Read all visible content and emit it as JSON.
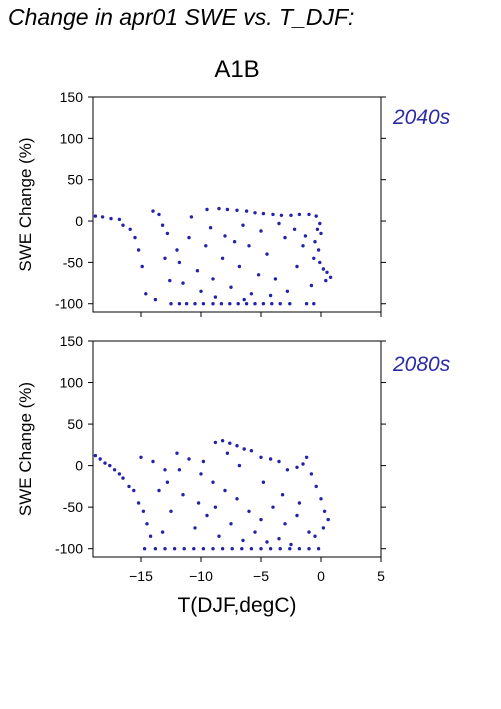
{
  "figure": {
    "title": "Change in apr01 SWE vs. T_DJF:",
    "scenario": "A1B",
    "xlabel": "T(DJF,degC)"
  },
  "colors": {
    "points": "#2222aa",
    "period_label": "#2b2baa"
  },
  "chart_data": [
    {
      "type": "scatter",
      "period_label": "2040s",
      "xlabel": "T(DJF,degC)",
      "ylabel": "SWE Change (%)",
      "xlim": [
        -19,
        5
      ],
      "ylim": [
        -110,
        150
      ],
      "xticks": [
        -15,
        -10,
        -5,
        0,
        5
      ],
      "yticks": [
        -100,
        -50,
        0,
        50,
        100,
        150
      ],
      "grid": false,
      "legend": "none",
      "series": [
        {
          "points": [
            [
              -18.8,
              6
            ],
            [
              -18.2,
              5
            ],
            [
              -17.5,
              3
            ],
            [
              -16.8,
              2
            ],
            [
              -16.5,
              -5
            ],
            [
              -15.9,
              -10
            ],
            [
              -15.5,
              -20
            ],
            [
              -15.2,
              -35
            ],
            [
              -14.9,
              -55
            ],
            [
              -14.6,
              -88
            ],
            [
              -13.8,
              -95
            ],
            [
              -14.0,
              12
            ],
            [
              -13.5,
              8
            ],
            [
              -13.0,
              -45
            ],
            [
              -12.6,
              -72
            ],
            [
              -12.5,
              -100
            ],
            [
              -11.8,
              -100
            ],
            [
              -11.2,
              -100
            ],
            [
              -10.5,
              -100
            ],
            [
              -9.8,
              -100
            ],
            [
              -9.0,
              -100
            ],
            [
              -8.3,
              -100
            ],
            [
              -7.6,
              -100
            ],
            [
              -6.9,
              -100
            ],
            [
              -6.2,
              -100
            ],
            [
              -5.5,
              -100
            ],
            [
              -4.8,
              -100
            ],
            [
              -4.1,
              -100
            ],
            [
              -3.4,
              -100
            ],
            [
              -2.6,
              -100
            ],
            [
              -0.6,
              -100
            ],
            [
              -1.2,
              -100
            ],
            [
              -9.5,
              14
            ],
            [
              -8.5,
              15
            ],
            [
              -7.8,
              14
            ],
            [
              -7.0,
              13
            ],
            [
              -6.2,
              12
            ],
            [
              -5.5,
              10
            ],
            [
              -4.8,
              9
            ],
            [
              -4.0,
              8
            ],
            [
              -3.3,
              7
            ],
            [
              -2.5,
              7
            ],
            [
              -1.8,
              8
            ],
            [
              -1.0,
              8
            ],
            [
              -0.4,
              6
            ],
            [
              -0.1,
              -3
            ],
            [
              -0.3,
              -10
            ],
            [
              0.0,
              -15
            ],
            [
              -0.5,
              -25
            ],
            [
              -0.2,
              -35
            ],
            [
              -0.6,
              -45
            ],
            [
              -0.1,
              -50
            ],
            [
              0.2,
              -58
            ],
            [
              0.5,
              -62
            ],
            [
              0.8,
              -68
            ],
            [
              0.4,
              -72
            ],
            [
              -0.8,
              -78
            ],
            [
              -1.5,
              -30
            ],
            [
              -2.0,
              -55
            ],
            [
              -3.0,
              -20
            ],
            [
              -3.8,
              -70
            ],
            [
              -4.5,
              -40
            ],
            [
              -5.2,
              -65
            ],
            [
              -6.0,
              -30
            ],
            [
              -6.8,
              -55
            ],
            [
              -7.5,
              -80
            ],
            [
              -8.2,
              -45
            ],
            [
              -9.0,
              -70
            ],
            [
              -9.6,
              -30
            ],
            [
              -10.3,
              -60
            ],
            [
              -11.0,
              -20
            ],
            [
              -11.5,
              -75
            ],
            [
              -12.0,
              -35
            ],
            [
              -12.8,
              -15
            ],
            [
              -13.2,
              -5
            ],
            [
              -10.8,
              5
            ],
            [
              -9.2,
              -8
            ],
            [
              -8.0,
              -18
            ],
            [
              -6.5,
              -5
            ],
            [
              -5.0,
              -12
            ],
            [
              -3.5,
              -3
            ],
            [
              -2.2,
              -10
            ],
            [
              -1.3,
              -18
            ],
            [
              -7.2,
              -25
            ],
            [
              -4.2,
              -90
            ],
            [
              -2.8,
              -85
            ],
            [
              -5.8,
              -88
            ],
            [
              -8.8,
              -92
            ],
            [
              -10.0,
              -85
            ],
            [
              -11.8,
              -50
            ],
            [
              -6.4,
              -95
            ]
          ]
        }
      ]
    },
    {
      "type": "scatter",
      "period_label": "2080s",
      "xlabel": "T(DJF,degC)",
      "ylabel": "SWE Change (%)",
      "xlim": [
        -19,
        5
      ],
      "ylim": [
        -110,
        150
      ],
      "xticks": [
        -15,
        -10,
        -5,
        0,
        5
      ],
      "yticks": [
        -100,
        -50,
        0,
        50,
        100,
        150
      ],
      "grid": false,
      "legend": "none",
      "series": [
        {
          "points": [
            [
              -18.8,
              12
            ],
            [
              -18.4,
              8
            ],
            [
              -18.0,
              3
            ],
            [
              -17.6,
              0
            ],
            [
              -17.2,
              -5
            ],
            [
              -16.8,
              -10
            ],
            [
              -16.5,
              -15
            ],
            [
              -16.0,
              -25
            ],
            [
              -15.6,
              -30
            ],
            [
              -15.2,
              -45
            ],
            [
              -14.8,
              -55
            ],
            [
              -14.5,
              -70
            ],
            [
              -14.2,
              -85
            ],
            [
              -14.7,
              -100
            ],
            [
              -13.8,
              -100
            ],
            [
              -13.0,
              -100
            ],
            [
              -12.2,
              -100
            ],
            [
              -11.4,
              -100
            ],
            [
              -10.6,
              -100
            ],
            [
              -9.8,
              -100
            ],
            [
              -9.0,
              -100
            ],
            [
              -8.2,
              -100
            ],
            [
              -7.4,
              -100
            ],
            [
              -6.6,
              -100
            ],
            [
              -5.8,
              -100
            ],
            [
              -5.0,
              -100
            ],
            [
              -4.2,
              -100
            ],
            [
              -3.4,
              -100
            ],
            [
              -2.6,
              -100
            ],
            [
              -1.8,
              -100
            ],
            [
              -1.0,
              -100
            ],
            [
              -0.2,
              -100
            ],
            [
              -8.8,
              28
            ],
            [
              -8.2,
              30
            ],
            [
              -7.6,
              27
            ],
            [
              -7.0,
              24
            ],
            [
              -6.4,
              20
            ],
            [
              -7.8,
              15
            ],
            [
              -5.8,
              18
            ],
            [
              -5.0,
              10
            ],
            [
              -4.2,
              8
            ],
            [
              -3.5,
              5
            ],
            [
              -2.8,
              -5
            ],
            [
              -2.0,
              -2
            ],
            [
              -1.5,
              2
            ],
            [
              -1.2,
              10
            ],
            [
              -0.8,
              -10
            ],
            [
              -0.4,
              -25
            ],
            [
              0.0,
              -40
            ],
            [
              0.3,
              -55
            ],
            [
              0.6,
              -65
            ],
            [
              0.2,
              -75
            ],
            [
              -0.5,
              -85
            ],
            [
              -15.0,
              10
            ],
            [
              -14.0,
              5
            ],
            [
              -13.0,
              -5
            ],
            [
              -12.0,
              15
            ],
            [
              -11.0,
              8
            ],
            [
              -10.0,
              -10
            ],
            [
              -9.0,
              -20
            ],
            [
              -8.0,
              -30
            ],
            [
              -7.0,
              -40
            ],
            [
              -6.0,
              -55
            ],
            [
              -5.0,
              -65
            ],
            [
              -4.0,
              -50
            ],
            [
              -3.0,
              -70
            ],
            [
              -2.0,
              -60
            ],
            [
              -1.0,
              -80
            ],
            [
              -11.5,
              -35
            ],
            [
              -12.5,
              -55
            ],
            [
              -13.5,
              -30
            ],
            [
              -10.5,
              -75
            ],
            [
              -9.5,
              -60
            ],
            [
              -8.5,
              -85
            ],
            [
              -7.5,
              -70
            ],
            [
              -6.5,
              -90
            ],
            [
              -5.5,
              -80
            ],
            [
              -4.5,
              -92
            ],
            [
              -3.5,
              -88
            ],
            [
              -2.5,
              -95
            ],
            [
              -12.8,
              -20
            ],
            [
              -11.8,
              -5
            ],
            [
              -9.8,
              5
            ],
            [
              -6.8,
              0
            ],
            [
              -4.8,
              -20
            ],
            [
              -3.2,
              -35
            ],
            [
              -1.8,
              -45
            ],
            [
              -10.2,
              -45
            ],
            [
              -8.8,
              -50
            ],
            [
              -13.2,
              -80
            ]
          ]
        }
      ]
    }
  ]
}
